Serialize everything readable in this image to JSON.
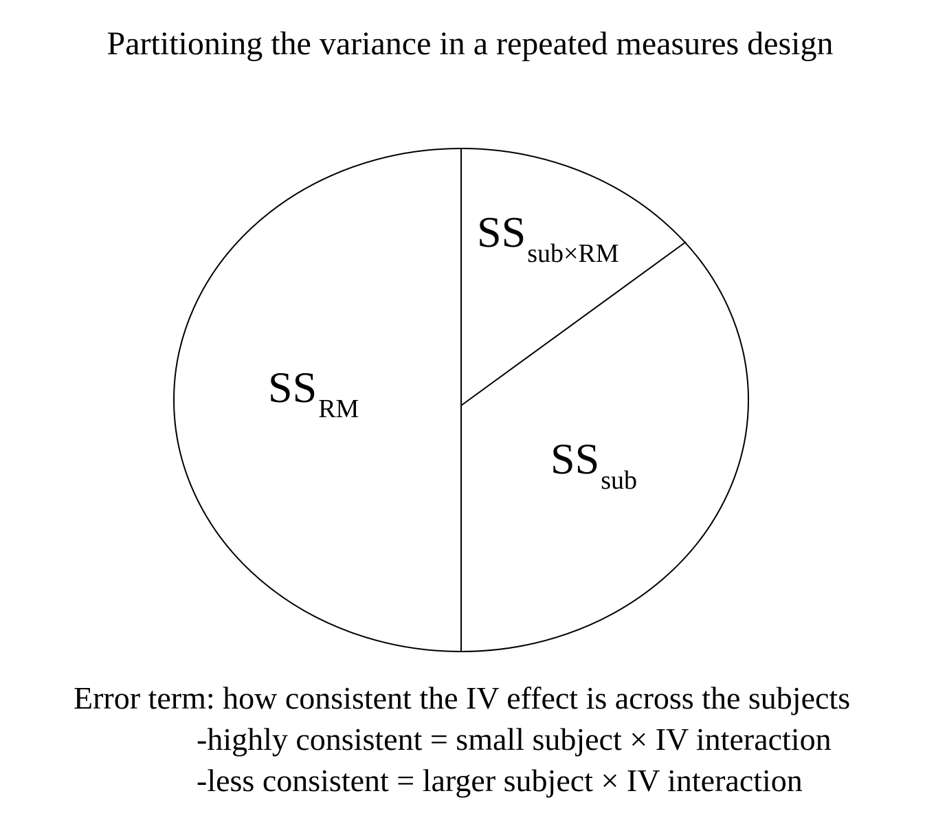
{
  "title": "Partitioning the variance in a repeated measures design",
  "segments": [
    {
      "key": "rm",
      "main": "SS",
      "subscript": "RM"
    },
    {
      "key": "subxrm",
      "main": "SS",
      "subscript": "sub×RM"
    },
    {
      "key": "sub",
      "main": "SS",
      "subscript": "sub"
    }
  ],
  "notes": {
    "line1": "Error term: how consistent the IV effect is across the subjects",
    "line2": "-highly consistent = small subject × IV interaction",
    "line3": "-less consistent = larger subject × IV interaction"
  },
  "colors": {
    "stroke": "#000000",
    "background": "#ffffff"
  }
}
